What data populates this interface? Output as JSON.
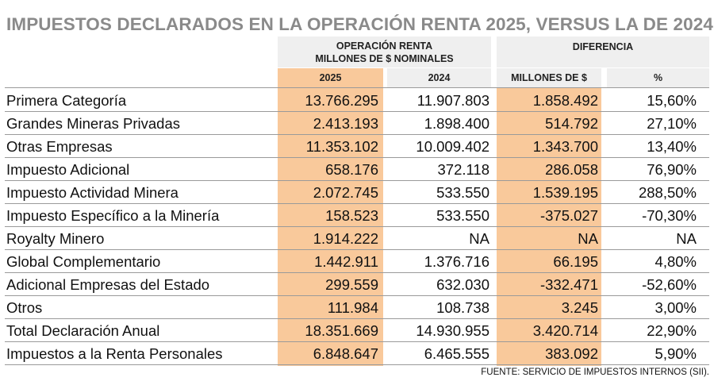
{
  "title": "IMPUESTOS DECLARADOS EN LA OPERACIÓN RENTA 2025, VERSUS LA DE 2024",
  "headers": {
    "group1_line1": "OPERACIÓN RENTA",
    "group1_line2": "MILLONES DE $ NOMINALES",
    "group2": "DIFERENCIA",
    "col_2025": "2025",
    "col_2024": "2024",
    "col_diff": "MILLONES DE $",
    "col_pct": "%"
  },
  "rows": [
    {
      "label": "Primera Categoría",
      "v2025": "13.766.295",
      "v2024": "11.907.803",
      "diff": "1.858.492",
      "pct": "15,60%"
    },
    {
      "label": "Grandes Mineras Privadas",
      "v2025": "2.413.193",
      "v2024": "1.898.400",
      "diff": "514.792",
      "pct": "27,10%"
    },
    {
      "label": "Otras Empresas",
      "v2025": "11.353.102",
      "v2024": "10.009.402",
      "diff": "1.343.700",
      "pct": "13,40%"
    },
    {
      "label": "Impuesto Adicional",
      "v2025": "658.176",
      "v2024": "372.118",
      "diff": "286.058",
      "pct": "76,90%"
    },
    {
      "label": "Impuesto Actividad Minera",
      "v2025": "2.072.745",
      "v2024": "533.550",
      "diff": "1.539.195",
      "pct": "288,50%"
    },
    {
      "label": "Impuesto Específico a la Minería",
      "v2025": "158.523",
      "v2024": "533.550",
      "diff": "-375.027",
      "pct": "-70,30%"
    },
    {
      "label": "Royalty Minero",
      "v2025": "1.914.222",
      "v2024": "NA",
      "diff": "NA",
      "pct": "NA"
    },
    {
      "label": "Global Complementario",
      "v2025": "1.442.911",
      "v2024": "1.376.716",
      "diff": "66.195",
      "pct": "4,80%"
    },
    {
      "label": "Adicional Empresas del Estado",
      "v2025": "299.559",
      "v2024": "632.030",
      "diff": "-332.471",
      "pct": "-52,60%"
    },
    {
      "label": "Otros",
      "v2025": "111.984",
      "v2024": "108.738",
      "diff": "3.245",
      "pct": "3,00%"
    },
    {
      "label": "Total Declaración Anual",
      "v2025": "18.351.669",
      "v2024": "14.930.955",
      "diff": "3.420.714",
      "pct": "22,90%"
    },
    {
      "label": "Impuestos a la Renta Personales",
      "v2025": "6.848.647",
      "v2024": "6.465.555",
      "diff": "383.092",
      "pct": "5,90%"
    }
  ],
  "source": "FUENTE: SERVICIO DE IMPUESTOS INTERNOS (SII).",
  "colors": {
    "highlight": "#f9c99b",
    "header_bg": "#efefef",
    "title": "#8a8a8a"
  }
}
